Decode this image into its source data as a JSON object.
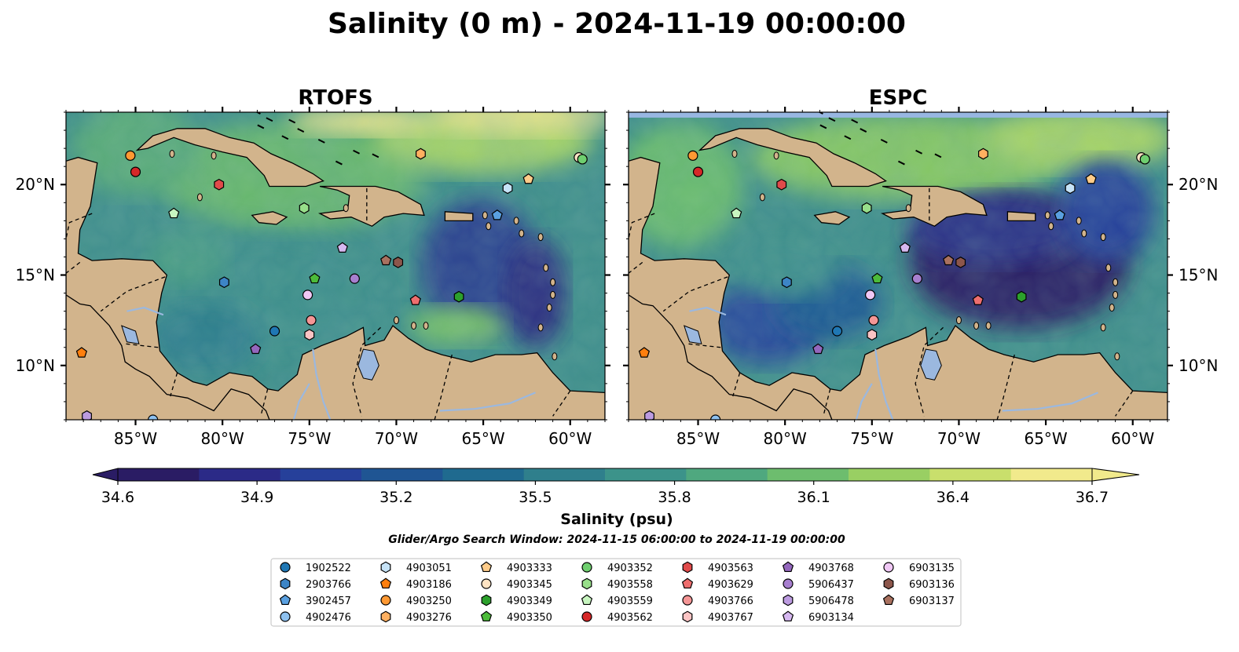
{
  "title": "Salinity (0 m) - 2024-11-19 00:00:00",
  "panels": [
    {
      "name": "RTOFS",
      "map_variant": "rtofs"
    },
    {
      "name": "ESPC",
      "map_variant": "espc"
    }
  ],
  "map_extent": {
    "lon": [
      -89,
      -58
    ],
    "lat": [
      7,
      24
    ]
  },
  "axes": {
    "lon_ticks": [
      -85,
      -80,
      -75,
      -70,
      -65,
      -60
    ],
    "lon_tick_labels": [
      "85°W",
      "80°W",
      "75°W",
      "70°W",
      "65°W",
      "60°W"
    ],
    "lat_ticks": [
      10,
      15,
      20
    ],
    "lat_tick_labels": [
      "10°N",
      "15°N",
      "20°N"
    ]
  },
  "colorbar": {
    "min": 34.6,
    "max": 36.7,
    "ticks": [
      34.6,
      34.9,
      35.2,
      35.5,
      35.8,
      36.1,
      36.4,
      36.7
    ],
    "tick_labels": [
      "34.6",
      "34.9",
      "35.2",
      "35.5",
      "35.8",
      "36.1",
      "36.4",
      "36.7"
    ],
    "label": "Salinity (psu)",
    "extend": "both",
    "colors": [
      "#2a1c64",
      "#2b2a87",
      "#26409a",
      "#1f5593",
      "#1f6a8f",
      "#2f7f8c",
      "#3c938a",
      "#4fa87f",
      "#6dbd6e",
      "#99cf63",
      "#c9df6c",
      "#f1ea8c"
    ]
  },
  "search_window": "Glider/Argo Search Window: 2024-11-15 06:00:00 to 2024-11-19 00:00:00",
  "colors": {
    "land": "#d2b48c",
    "lake": "#9bb8df",
    "espc_top_band": "#98b7e2"
  },
  "chart_data": {
    "type": "scatter",
    "description_fields": "platform observation locations in lon/lat (degrees)",
    "series": [
      {
        "name": "1902522",
        "marker": "circle",
        "color": "#1f77b4",
        "lon": [
          -77.0
        ],
        "lat": [
          11.9
        ]
      },
      {
        "name": "2903766",
        "marker": "hexagon",
        "color": "#3d85c6",
        "lon": [
          -79.9
        ],
        "lat": [
          14.6
        ]
      },
      {
        "name": "3902457",
        "marker": "pentagon",
        "color": "#5aa0e0",
        "lon": [
          -64.2
        ],
        "lat": [
          18.3
        ]
      },
      {
        "name": "4902476",
        "marker": "circle",
        "color": "#8ec1ef",
        "lon": [
          -84.0
        ],
        "lat": [
          7.0
        ]
      },
      {
        "name": "4903051",
        "marker": "hexagon",
        "color": "#c6e3f7",
        "lon": [
          -63.6
        ],
        "lat": [
          19.8
        ]
      },
      {
        "name": "4903186",
        "marker": "pentagon",
        "color": "#ff7f0e",
        "lon": [
          -88.1
        ],
        "lat": [
          10.7
        ]
      },
      {
        "name": "4903250",
        "marker": "circle",
        "color": "#ff9933",
        "lon": [
          -85.3
        ],
        "lat": [
          21.6
        ]
      },
      {
        "name": "4903276",
        "marker": "hexagon",
        "color": "#ffb060",
        "lon": [
          -68.6
        ],
        "lat": [
          21.7
        ]
      },
      {
        "name": "4903333",
        "marker": "pentagon",
        "color": "#ffcc8a",
        "lon": [
          -62.4
        ],
        "lat": [
          20.3
        ]
      },
      {
        "name": "4903345",
        "marker": "circle",
        "color": "#ffe4c4",
        "lon": [
          -59.5
        ],
        "lat": [
          21.5
        ]
      },
      {
        "name": "4903349",
        "marker": "hexagon",
        "color": "#2ca02c",
        "lon": [
          -66.4
        ],
        "lat": [
          13.8
        ]
      },
      {
        "name": "4903350",
        "marker": "pentagon",
        "color": "#4cbb3a",
        "lon": [
          -74.7
        ],
        "lat": [
          14.8
        ]
      },
      {
        "name": "4903352",
        "marker": "circle",
        "color": "#6fcf6f",
        "lon": [
          -59.3
        ],
        "lat": [
          21.4
        ]
      },
      {
        "name": "4903558",
        "marker": "hexagon",
        "color": "#98df8a",
        "lon": [
          -75.3
        ],
        "lat": [
          18.7
        ]
      },
      {
        "name": "4903559",
        "marker": "pentagon",
        "color": "#c8f5c0",
        "lon": [
          -82.8
        ],
        "lat": [
          18.4
        ]
      },
      {
        "name": "4903562",
        "marker": "circle",
        "color": "#d62728",
        "lon": [
          -85.0
        ],
        "lat": [
          20.7
        ]
      },
      {
        "name": "4903563",
        "marker": "hexagon",
        "color": "#e04a4a",
        "lon": [
          -80.2
        ],
        "lat": [
          20.0
        ]
      },
      {
        "name": "4903629",
        "marker": "pentagon",
        "color": "#ee6e6e",
        "lon": [
          -68.9
        ],
        "lat": [
          13.6
        ]
      },
      {
        "name": "4903766",
        "marker": "circle",
        "color": "#f59696",
        "lon": [
          -74.9
        ],
        "lat": [
          12.5
        ]
      },
      {
        "name": "4903767",
        "marker": "hexagon",
        "color": "#fbc4c4",
        "lon": [
          -75.0
        ],
        "lat": [
          11.7
        ]
      },
      {
        "name": "4903768",
        "marker": "pentagon",
        "color": "#9467bd",
        "lon": [
          -78.1
        ],
        "lat": [
          10.9
        ]
      },
      {
        "name": "5906437",
        "marker": "circle",
        "color": "#a77fcf",
        "lon": [
          -72.4
        ],
        "lat": [
          14.8
        ]
      },
      {
        "name": "5906478",
        "marker": "hexagon",
        "color": "#bc9be0",
        "lon": [
          -87.8
        ],
        "lat": [
          7.2
        ]
      },
      {
        "name": "6903134",
        "marker": "pentagon",
        "color": "#d6b8f0",
        "lon": [
          -73.1
        ],
        "lat": [
          16.5
        ]
      },
      {
        "name": "6903135",
        "marker": "circle",
        "color": "#f0c8f5",
        "lon": [
          -75.1
        ],
        "lat": [
          13.9
        ]
      },
      {
        "name": "6903136",
        "marker": "hexagon",
        "color": "#8c564b",
        "lon": [
          -69.9
        ],
        "lat": [
          15.7
        ]
      },
      {
        "name": "6903137",
        "marker": "pentagon",
        "color": "#a9715f",
        "lon": [
          -70.6
        ],
        "lat": [
          15.8
        ]
      }
    ]
  }
}
